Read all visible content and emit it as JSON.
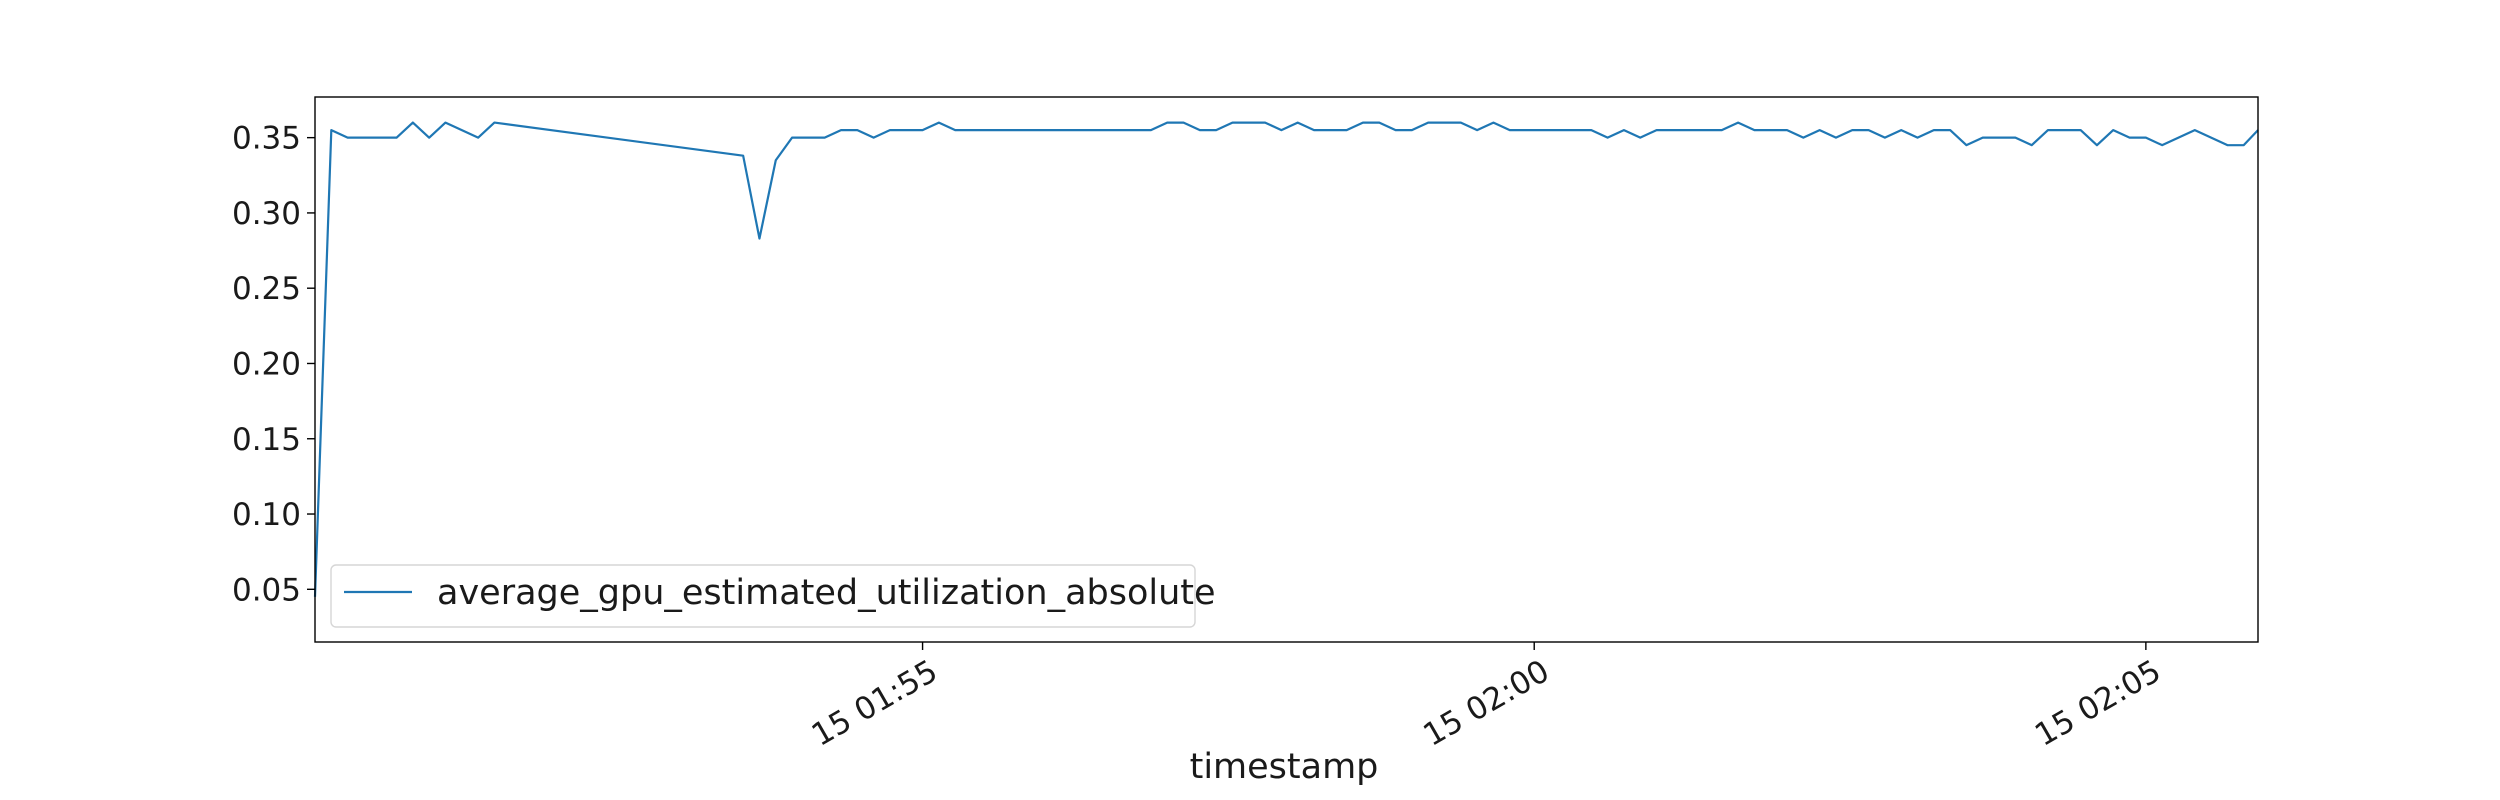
{
  "chart_data": {
    "type": "line",
    "title": "",
    "xlabel": "timestamp",
    "ylabel": "",
    "x_is_time": true,
    "xlim": [
      "15 01:50:02",
      "15 02:05:55"
    ],
    "ylim": [
      0.015,
      0.377
    ],
    "xticks": [
      {
        "value": "15 01:55:00",
        "label": "15 01:55"
      },
      {
        "value": "15 02:00:00",
        "label": "15 02:00"
      },
      {
        "value": "15 02:05:00",
        "label": "15 02:05"
      }
    ],
    "yticks": [
      {
        "value": 0.05,
        "label": "0.05"
      },
      {
        "value": 0.1,
        "label": "0.10"
      },
      {
        "value": 0.15,
        "label": "0.15"
      },
      {
        "value": 0.2,
        "label": "0.20"
      },
      {
        "value": 0.25,
        "label": "0.25"
      },
      {
        "value": 0.3,
        "label": "0.30"
      },
      {
        "value": 0.35,
        "label": "0.35"
      }
    ],
    "grid": false,
    "legend": {
      "position": "lower-left"
    },
    "series": [
      {
        "name": "average_gpu_estimated_utilization_absolute",
        "color": "#1f77b4",
        "points": [
          [
            "15 01:50:02",
            0.045
          ],
          [
            "15 01:50:10",
            0.355
          ],
          [
            "15 01:50:18",
            0.35
          ],
          [
            "15 01:50:26",
            0.35
          ],
          [
            "15 01:50:34",
            0.35
          ],
          [
            "15 01:50:42",
            0.35
          ],
          [
            "15 01:50:50",
            0.36
          ],
          [
            "15 01:50:58",
            0.35
          ],
          [
            "15 01:51:06",
            0.36
          ],
          [
            "15 01:51:14",
            0.355
          ],
          [
            "15 01:51:22",
            0.35
          ],
          [
            "15 01:51:30",
            0.36
          ],
          [
            "15 01:53:32",
            0.338
          ],
          [
            "15 01:53:40",
            0.283
          ],
          [
            "15 01:53:48",
            0.335
          ],
          [
            "15 01:53:56",
            0.35
          ],
          [
            "15 01:54:04",
            0.35
          ],
          [
            "15 01:54:12",
            0.35
          ],
          [
            "15 01:54:20",
            0.355
          ],
          [
            "15 01:54:28",
            0.355
          ],
          [
            "15 01:54:36",
            0.35
          ],
          [
            "15 01:54:44",
            0.355
          ],
          [
            "15 01:54:52",
            0.355
          ],
          [
            "15 01:55:00",
            0.355
          ],
          [
            "15 01:55:08",
            0.36
          ],
          [
            "15 01:55:16",
            0.355
          ],
          [
            "15 01:55:24",
            0.355
          ],
          [
            "15 01:55:32",
            0.355
          ],
          [
            "15 01:55:40",
            0.355
          ],
          [
            "15 01:55:48",
            0.355
          ],
          [
            "15 01:55:56",
            0.355
          ],
          [
            "15 01:56:04",
            0.355
          ],
          [
            "15 01:56:12",
            0.355
          ],
          [
            "15 01:56:20",
            0.355
          ],
          [
            "15 01:56:28",
            0.355
          ],
          [
            "15 01:56:36",
            0.355
          ],
          [
            "15 01:56:44",
            0.355
          ],
          [
            "15 01:56:52",
            0.355
          ],
          [
            "15 01:57:00",
            0.36
          ],
          [
            "15 01:57:08",
            0.36
          ],
          [
            "15 01:57:16",
            0.355
          ],
          [
            "15 01:57:24",
            0.355
          ],
          [
            "15 01:57:32",
            0.36
          ],
          [
            "15 01:57:40",
            0.36
          ],
          [
            "15 01:57:48",
            0.36
          ],
          [
            "15 01:57:56",
            0.355
          ],
          [
            "15 01:58:04",
            0.36
          ],
          [
            "15 01:58:12",
            0.355
          ],
          [
            "15 01:58:20",
            0.355
          ],
          [
            "15 01:58:28",
            0.355
          ],
          [
            "15 01:58:36",
            0.36
          ],
          [
            "15 01:58:44",
            0.36
          ],
          [
            "15 01:58:52",
            0.355
          ],
          [
            "15 01:59:00",
            0.355
          ],
          [
            "15 01:59:08",
            0.36
          ],
          [
            "15 01:59:16",
            0.36
          ],
          [
            "15 01:59:24",
            0.36
          ],
          [
            "15 01:59:32",
            0.355
          ],
          [
            "15 01:59:40",
            0.36
          ],
          [
            "15 01:59:48",
            0.355
          ],
          [
            "15 01:59:56",
            0.355
          ],
          [
            "15 02:00:04",
            0.355
          ],
          [
            "15 02:00:12",
            0.355
          ],
          [
            "15 02:00:20",
            0.355
          ],
          [
            "15 02:00:28",
            0.355
          ],
          [
            "15 02:00:36",
            0.35
          ],
          [
            "15 02:00:44",
            0.355
          ],
          [
            "15 02:00:52",
            0.35
          ],
          [
            "15 02:01:00",
            0.355
          ],
          [
            "15 02:01:08",
            0.355
          ],
          [
            "15 02:01:16",
            0.355
          ],
          [
            "15 02:01:24",
            0.355
          ],
          [
            "15 02:01:32",
            0.355
          ],
          [
            "15 02:01:40",
            0.36
          ],
          [
            "15 02:01:48",
            0.355
          ],
          [
            "15 02:01:56",
            0.355
          ],
          [
            "15 02:02:04",
            0.355
          ],
          [
            "15 02:02:12",
            0.35
          ],
          [
            "15 02:02:20",
            0.355
          ],
          [
            "15 02:02:28",
            0.35
          ],
          [
            "15 02:02:36",
            0.355
          ],
          [
            "15 02:02:44",
            0.355
          ],
          [
            "15 02:02:52",
            0.35
          ],
          [
            "15 02:03:00",
            0.355
          ],
          [
            "15 02:03:08",
            0.35
          ],
          [
            "15 02:03:16",
            0.355
          ],
          [
            "15 02:03:24",
            0.355
          ],
          [
            "15 02:03:32",
            0.345
          ],
          [
            "15 02:03:40",
            0.35
          ],
          [
            "15 02:03:48",
            0.35
          ],
          [
            "15 02:03:56",
            0.35
          ],
          [
            "15 02:04:04",
            0.345
          ],
          [
            "15 02:04:12",
            0.355
          ],
          [
            "15 02:04:20",
            0.355
          ],
          [
            "15 02:04:28",
            0.355
          ],
          [
            "15 02:04:36",
            0.345
          ],
          [
            "15 02:04:44",
            0.355
          ],
          [
            "15 02:04:52",
            0.35
          ],
          [
            "15 02:05:00",
            0.35
          ],
          [
            "15 02:05:08",
            0.345
          ],
          [
            "15 02:05:16",
            0.35
          ],
          [
            "15 02:05:24",
            0.355
          ],
          [
            "15 02:05:32",
            0.35
          ],
          [
            "15 02:05:40",
            0.345
          ],
          [
            "15 02:05:48",
            0.345
          ],
          [
            "15 02:05:55",
            0.355
          ]
        ]
      }
    ]
  }
}
